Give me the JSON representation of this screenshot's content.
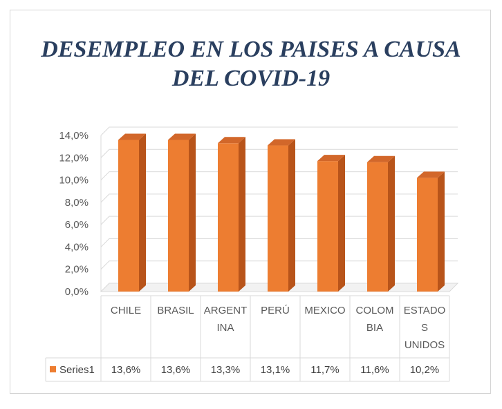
{
  "chart_data": {
    "type": "bar",
    "title_lines": [
      "DESEMPLEO EN LOS PAISES A CAUSA",
      "DEL COVID-19"
    ],
    "categories": [
      [
        "CHILE"
      ],
      [
        "BRASIL"
      ],
      [
        "ARGENT",
        "INA"
      ],
      [
        "PERÚ"
      ],
      [
        "MEXICO"
      ],
      [
        "COLOM",
        "BIA"
      ],
      [
        "ESTADO",
        "S",
        "UNIDOS"
      ]
    ],
    "series": [
      {
        "name": "Series1",
        "values": [
          13.6,
          13.6,
          13.3,
          13.1,
          11.7,
          11.6,
          10.2
        ],
        "labels": [
          "13,6%",
          "13,6%",
          "13,3%",
          "13,1%",
          "11,7%",
          "11,6%",
          "10,2%"
        ]
      }
    ],
    "ylim": [
      0,
      14
    ],
    "ytick_values": [
      0,
      2,
      4,
      6,
      8,
      10,
      12,
      14
    ],
    "ytick_labels": [
      "0,0%",
      "2,0%",
      "4,0%",
      "6,0%",
      "8,0%",
      "10,0%",
      "12,0%",
      "14,0%"
    ],
    "bar_color": "#ed7d31",
    "bar_side_color": "#b8541a",
    "bar_top_color": "#d2672a",
    "grid": true,
    "legend_placement": "data-table",
    "data_table": true,
    "style": "3d-column"
  }
}
